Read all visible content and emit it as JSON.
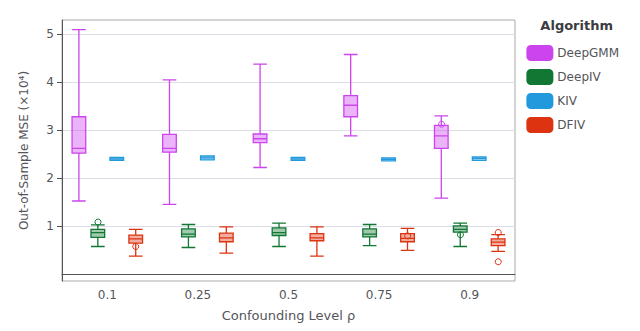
{
  "chart_data": {
    "type": "boxplot",
    "xlabel": "Confounding Level ρ",
    "ylabel": "Out-of-Sample MSE (×10⁴)",
    "categories": [
      "0.1",
      "0.25",
      "0.5",
      "0.75",
      "0.9"
    ],
    "ylim": [
      -0.15,
      5.3
    ],
    "yticks": [
      1,
      2,
      3,
      4,
      5
    ],
    "grid": true,
    "legend": "right",
    "legend_title": "Algorithm",
    "series": [
      {
        "name": "DeepGMM",
        "color": "#cc44ee",
        "values": [
          [
            1.52,
            2.52,
            2.62,
            3.28,
            5.1
          ],
          [
            1.45,
            2.54,
            2.62,
            2.91,
            4.05
          ],
          [
            2.22,
            2.74,
            2.82,
            2.92,
            4.38
          ],
          [
            2.88,
            3.28,
            3.52,
            3.72,
            4.58
          ],
          [
            1.58,
            2.62,
            2.88,
            3.1,
            3.3
          ]
        ],
        "fliers": [
          [],
          [],
          [],
          [],
          [
            3.15
          ]
        ]
      },
      {
        "name": "DeepIV",
        "color": "#117733",
        "values": [
          [
            0.57,
            0.76,
            0.86,
            0.93,
            1.02
          ],
          [
            0.55,
            0.77,
            0.83,
            0.94,
            1.03
          ],
          [
            0.57,
            0.8,
            0.86,
            0.96,
            1.06
          ],
          [
            0.59,
            0.77,
            0.83,
            0.94,
            1.03
          ],
          [
            0.57,
            0.87,
            0.93,
            1.0,
            1.06
          ]
        ],
        "fliers": [
          [
            1.1
          ],
          [],
          [],
          [],
          [
            0.84
          ]
        ]
      },
      {
        "name": "KIV",
        "color": "#2299dd",
        "values": [
          [
            2.37,
            2.37,
            2.4,
            2.43,
            2.43
          ],
          [
            2.38,
            2.38,
            2.42,
            2.46,
            2.46
          ],
          [
            2.37,
            2.37,
            2.4,
            2.43,
            2.43
          ],
          [
            2.36,
            2.36,
            2.39,
            2.42,
            2.42
          ],
          [
            2.37,
            2.37,
            2.41,
            2.44,
            2.44
          ]
        ],
        "fliers": [
          [],
          [],
          [],
          [],
          []
        ]
      },
      {
        "name": "DFIV",
        "color": "#dd3311",
        "values": [
          [
            0.37,
            0.64,
            0.73,
            0.81,
            0.93
          ],
          [
            0.43,
            0.67,
            0.75,
            0.85,
            0.98
          ],
          [
            0.37,
            0.69,
            0.75,
            0.84,
            0.98
          ],
          [
            0.49,
            0.67,
            0.74,
            0.84,
            0.95
          ],
          [
            0.47,
            0.59,
            0.66,
            0.73,
            0.82
          ]
        ],
        "fliers": [
          [
            0.57
          ],
          [],
          [],
          [
            0.81
          ],
          [
            0.27,
            0.88
          ]
        ]
      }
    ]
  }
}
